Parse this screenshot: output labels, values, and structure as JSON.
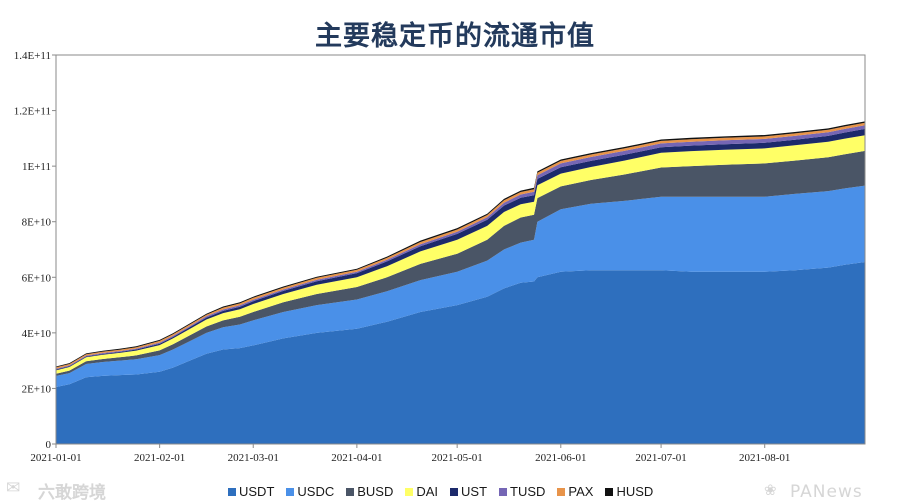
{
  "chart_data": {
    "type": "area",
    "stacked": true,
    "title": "主要稳定币的流通市值",
    "xlabel": "",
    "ylabel": "",
    "x_domain": [
      "2021-01-01",
      "2021-08-31"
    ],
    "ylim": [
      0,
      140000000000
    ],
    "y_ticks": [
      0,
      20000000000,
      40000000000,
      60000000000,
      80000000000,
      100000000000,
      120000000000,
      140000000000
    ],
    "y_tick_labels": [
      "0",
      "2E+10",
      "4E+10",
      "6E+10",
      "8E+10",
      "1E+11",
      "1.2E+11",
      "1.4E+11"
    ],
    "x_ticks": [
      "2021-01-01",
      "2021-02-01",
      "2021-03-01",
      "2021-04-01",
      "2021-05-01",
      "2021-06-01",
      "2021-07-01",
      "2021-08-01"
    ],
    "dates": [
      "2021-01-01",
      "2021-01-05",
      "2021-01-10",
      "2021-01-15",
      "2021-01-20",
      "2021-01-25",
      "2021-02-01",
      "2021-02-05",
      "2021-02-10",
      "2021-02-15",
      "2021-02-20",
      "2021-02-25",
      "2021-03-01",
      "2021-03-10",
      "2021-03-20",
      "2021-04-01",
      "2021-04-10",
      "2021-04-20",
      "2021-05-01",
      "2021-05-10",
      "2021-05-15",
      "2021-05-20",
      "2021-05-24",
      "2021-05-25",
      "2021-06-01",
      "2021-06-10",
      "2021-06-20",
      "2021-07-01",
      "2021-07-10",
      "2021-07-20",
      "2021-08-01",
      "2021-08-10",
      "2021-08-20",
      "2021-08-25",
      "2021-08-31"
    ],
    "series": [
      {
        "name": "USDT",
        "color": "#2e6fbe",
        "values": [
          20.5,
          21.5,
          24.0,
          24.5,
          24.8,
          25.0,
          26.0,
          27.5,
          30.0,
          32.5,
          34.0,
          34.5,
          35.5,
          38.0,
          40.0,
          41.5,
          44.0,
          47.5,
          50.0,
          53.0,
          56.0,
          58.0,
          58.5,
          60.0,
          62.0,
          62.5,
          62.5,
          62.5,
          62.0,
          62.0,
          62.0,
          62.5,
          63.5,
          64.5,
          65.5
        ]
      },
      {
        "name": "USDC",
        "color": "#4a90e8",
        "values": [
          4.0,
          4.0,
          4.8,
          5.0,
          5.2,
          5.5,
          6.0,
          6.5,
          7.0,
          7.5,
          8.0,
          8.5,
          9.0,
          9.5,
          10.0,
          10.5,
          11.0,
          11.5,
          12.0,
          13.0,
          14.0,
          14.5,
          15.0,
          20.0,
          22.5,
          24.0,
          25.0,
          26.5,
          27.0,
          27.0,
          27.0,
          27.5,
          27.5,
          27.5,
          27.5
        ]
      },
      {
        "name": "BUSD",
        "color": "#4a5566",
        "values": [
          0.8,
          0.9,
          1.0,
          1.1,
          1.2,
          1.4,
          1.7,
          1.9,
          2.1,
          2.3,
          2.5,
          2.8,
          3.0,
          3.5,
          4.0,
          4.5,
          5.0,
          5.8,
          6.5,
          7.5,
          8.5,
          9.0,
          9.0,
          8.5,
          8.2,
          8.5,
          9.5,
          10.5,
          11.0,
          11.5,
          12.0,
          12.0,
          12.2,
          12.3,
          12.5
        ]
      },
      {
        "name": "DAI",
        "color": "#ffff66",
        "values": [
          1.2,
          1.3,
          1.4,
          1.5,
          1.6,
          1.7,
          1.9,
          2.1,
          2.3,
          2.5,
          2.6,
          2.7,
          2.9,
          3.0,
          3.3,
          3.5,
          4.0,
          4.5,
          5.0,
          5.0,
          5.0,
          4.8,
          4.7,
          4.6,
          4.6,
          4.7,
          5.0,
          5.3,
          5.4,
          5.4,
          5.4,
          5.5,
          5.6,
          5.6,
          5.6
        ]
      },
      {
        "name": "UST",
        "color": "#1c2a6b",
        "values": [
          0.3,
          0.3,
          0.3,
          0.3,
          0.3,
          0.4,
          0.5,
          0.5,
          0.6,
          0.7,
          0.8,
          0.9,
          1.0,
          1.1,
          1.3,
          1.5,
          1.7,
          1.9,
          2.1,
          2.2,
          2.3,
          2.3,
          2.3,
          2.3,
          2.3,
          2.2,
          2.1,
          2.0,
          2.0,
          2.0,
          2.0,
          2.0,
          2.1,
          2.2,
          2.3
        ]
      },
      {
        "name": "TUSD",
        "color": "#7566b5",
        "values": [
          0.3,
          0.3,
          0.3,
          0.35,
          0.35,
          0.35,
          0.4,
          0.4,
          0.4,
          0.45,
          0.5,
          0.5,
          0.5,
          0.5,
          0.5,
          0.5,
          0.6,
          0.7,
          0.8,
          0.9,
          1.0,
          1.2,
          1.3,
          1.3,
          1.4,
          1.4,
          1.4,
          1.4,
          1.4,
          1.4,
          1.4,
          1.4,
          1.3,
          1.3,
          1.3
        ]
      },
      {
        "name": "PAX",
        "color": "#e8944a",
        "values": [
          0.5,
          0.5,
          0.5,
          0.5,
          0.5,
          0.5,
          0.6,
          0.6,
          0.6,
          0.6,
          0.7,
          0.7,
          0.7,
          0.7,
          0.7,
          0.7,
          0.7,
          0.8,
          0.8,
          0.8,
          0.9,
          0.9,
          0.9,
          0.9,
          0.9,
          0.9,
          0.9,
          0.9,
          0.9,
          0.9,
          0.9,
          0.9,
          0.9,
          0.9,
          0.9
        ]
      },
      {
        "name": "HUSD",
        "color": "#111111",
        "values": [
          0.3,
          0.3,
          0.3,
          0.3,
          0.3,
          0.3,
          0.35,
          0.35,
          0.35,
          0.35,
          0.4,
          0.4,
          0.4,
          0.4,
          0.4,
          0.4,
          0.45,
          0.5,
          0.5,
          0.5,
          0.5,
          0.5,
          0.5,
          0.5,
          0.5,
          0.5,
          0.5,
          0.5,
          0.5,
          0.5,
          0.5,
          0.5,
          0.5,
          0.5,
          0.5
        ]
      }
    ],
    "values_unit": "1E+9",
    "grid": false,
    "legend_position": "bottom"
  },
  "watermarks": {
    "left_text": "六敢跨境",
    "left_icon": "✉",
    "right_text": "PANews",
    "right_icon": "❀"
  }
}
